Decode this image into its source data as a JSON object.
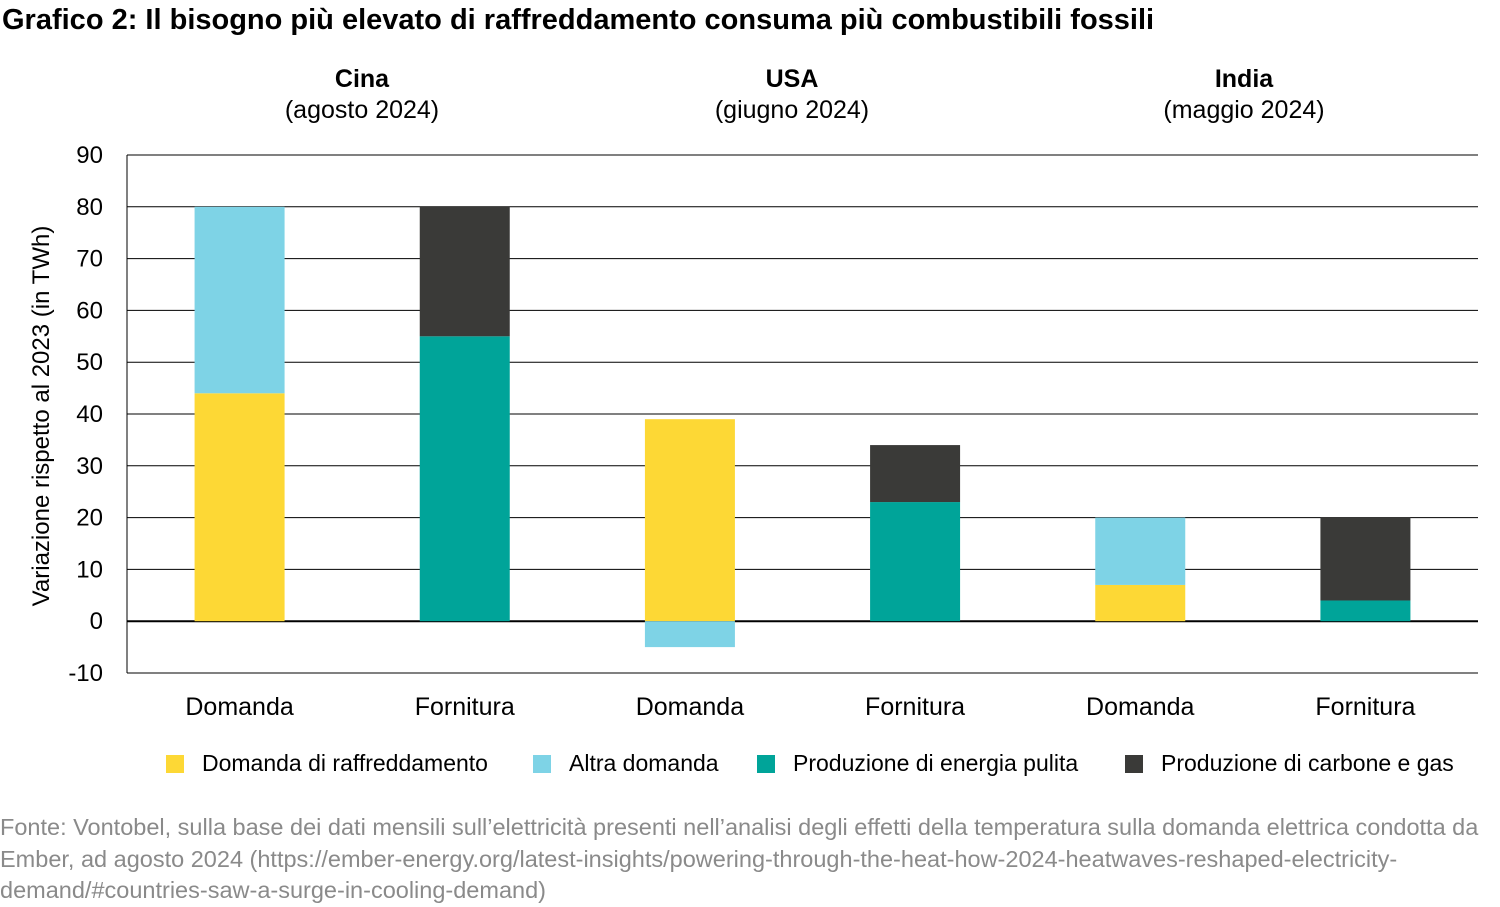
{
  "title": "Grafico 2: Il bisogno più elevato di raffreddamento consuma più combustibili fossili",
  "groups": [
    {
      "country": "Cina",
      "period": "(agosto 2024)"
    },
    {
      "country": "USA",
      "period": "(giugno 2024)"
    },
    {
      "country": "India",
      "period": "(maggio 2024)"
    }
  ],
  "legend": [
    {
      "label": "Domanda di raffreddamento",
      "color": "#FDD835"
    },
    {
      "label": "Altra domanda",
      "color": "#7ED3E6"
    },
    {
      "label": "Produzione di energia pulita",
      "color": "#00A499"
    },
    {
      "label": "Produzione di carbone e gas",
      "color": "#3A3A38"
    }
  ],
  "chart_data": {
    "type": "bar",
    "stacked": true,
    "ylabel": "Variazione rispetto al 2023 (in TWh)",
    "xlabel": "",
    "ylim": [
      -10,
      90
    ],
    "yticks": [
      -10,
      0,
      10,
      20,
      30,
      40,
      50,
      60,
      70,
      80,
      90
    ],
    "grid": true,
    "categories": [
      "Domanda",
      "Fornitura",
      "Domanda",
      "Fornitura",
      "Domanda",
      "Fornitura"
    ],
    "series": [
      {
        "name": "Domanda di raffreddamento",
        "values": [
          44,
          0,
          39,
          0,
          7,
          0
        ]
      },
      {
        "name": "Altra domanda",
        "values": [
          36,
          0,
          -5,
          0,
          13,
          0
        ]
      },
      {
        "name": "Produzione di energia pulita",
        "values": [
          0,
          55,
          0,
          23,
          0,
          4
        ]
      },
      {
        "name": "Produzione di carbone e gas",
        "values": [
          0,
          25,
          0,
          11,
          0,
          16
        ]
      }
    ]
  },
  "source": "Fonte: Vontobel, sulla base dei dati mensili sull’elettricità presenti nell’analisi degli effetti della temperatura sulla domanda elettrica condotta da Ember, ad agosto 2024 (https://ember-energy.org/latest-insights/powering-through-the-heat-how-2024-heatwaves-reshaped-electricity-demand/#countries-saw-a-surge-in-cooling-demand)"
}
